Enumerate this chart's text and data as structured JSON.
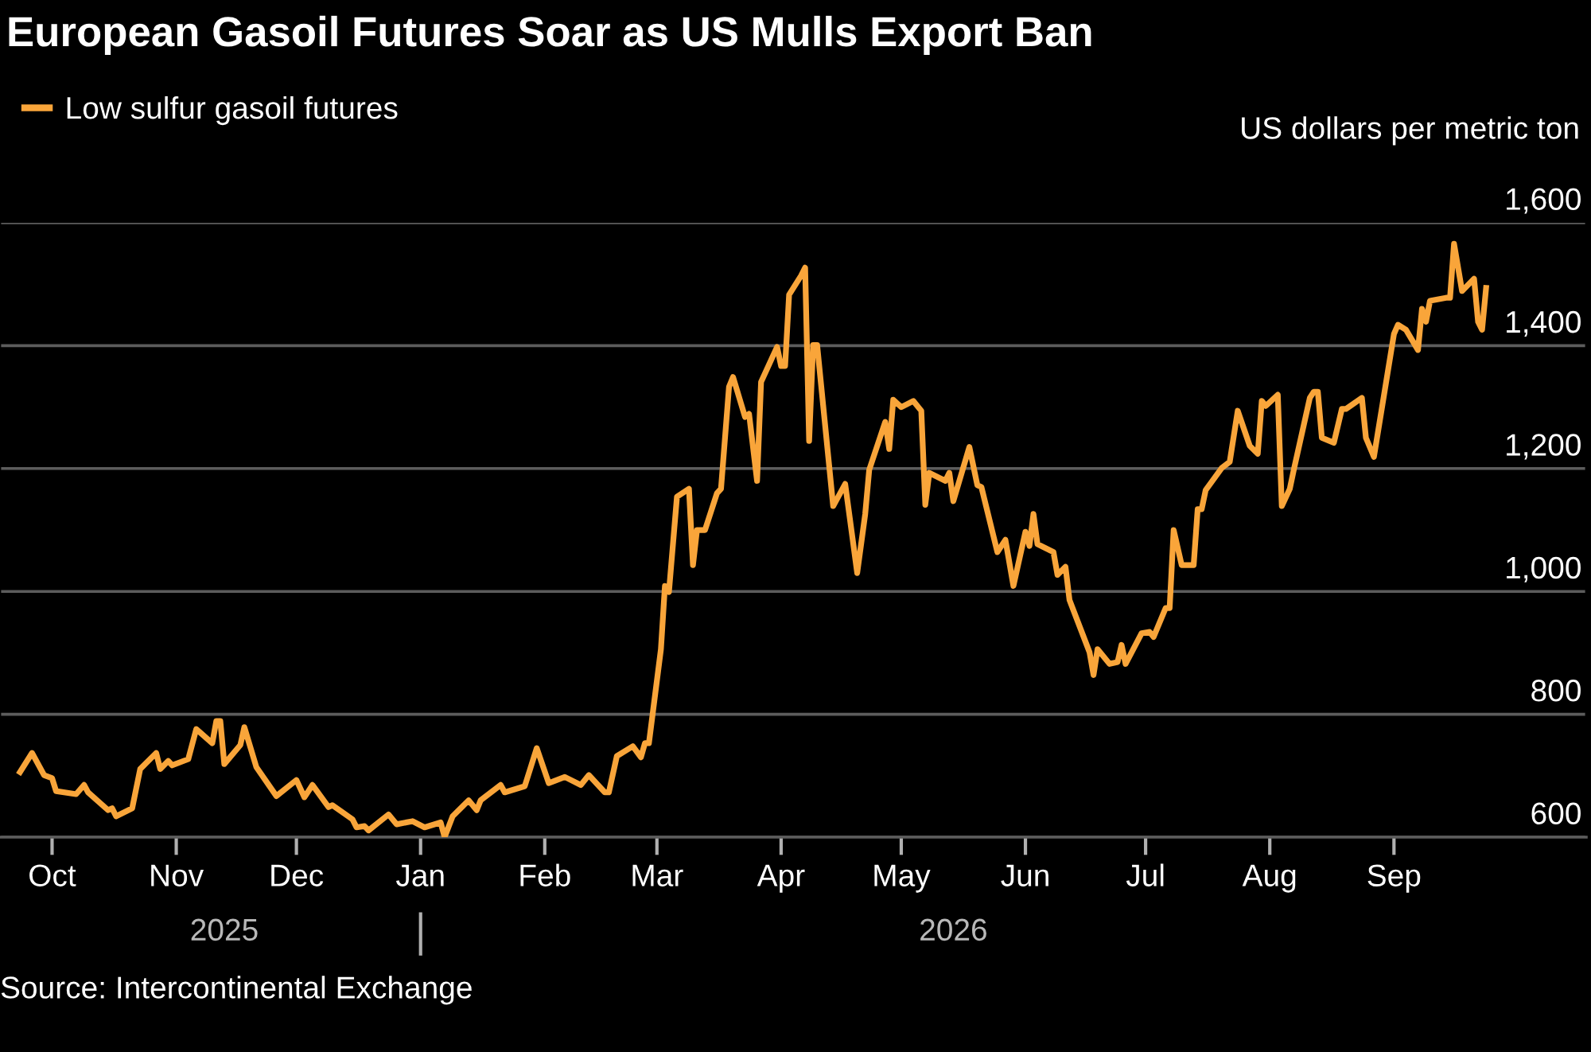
{
  "chart_data": {
    "type": "line",
    "title": "European Gasoil Futures Soar as US Mulls Export Ban",
    "ylabel": "US dollars per metric ton",
    "annotations": [
      "Source: Intercontinental Exchange"
    ],
    "series": [
      {
        "name": "Low sulfur gasoil futures",
        "color": "#f9a53a",
        "x": [
          "2025-09-23",
          "2025-09-26",
          "2025-09-29",
          "2025-10-01",
          "2025-10-02",
          "2025-10-07",
          "2025-10-09",
          "2025-10-10",
          "2025-10-15",
          "2025-10-16",
          "2025-10-17",
          "2025-10-21",
          "2025-10-23",
          "2025-10-27",
          "2025-10-28",
          "2025-10-30",
          "2025-10-31",
          "2025-11-04",
          "2025-11-06",
          "2025-11-10",
          "2025-11-11",
          "2025-11-12",
          "2025-11-13",
          "2025-11-17",
          "2025-11-18",
          "2025-11-21",
          "2025-11-26",
          "2025-12-01",
          "2025-12-03",
          "2025-12-05",
          "2025-12-09",
          "2025-12-10",
          "2025-12-15",
          "2025-12-16",
          "2025-12-18",
          "2025-12-19",
          "2025-12-24",
          "2025-12-26",
          "2025-12-30",
          "2026-01-02",
          "2026-01-06",
          "2026-01-07",
          "2026-01-09",
          "2026-01-13",
          "2026-01-15",
          "2026-01-16",
          "2026-01-21",
          "2026-01-22",
          "2026-01-27",
          "2026-01-30",
          "2026-02-02",
          "2026-02-06",
          "2026-02-10",
          "2026-02-12",
          "2026-02-16",
          "2026-02-17",
          "2026-02-19",
          "2026-02-23",
          "2026-02-25",
          "2026-02-26",
          "2026-02-27",
          "2026-03-02",
          "2026-03-03",
          "2026-03-04",
          "2026-03-06",
          "2026-03-09",
          "2026-03-10",
          "2026-03-11",
          "2026-03-13",
          "2026-03-16",
          "2026-03-17",
          "2026-03-19",
          "2026-03-20",
          "2026-03-23",
          "2026-03-24",
          "2026-03-26",
          "2026-03-27",
          "2026-03-31",
          "2026-04-01",
          "2026-04-02",
          "2026-04-03",
          "2026-04-06",
          "2026-04-07",
          "2026-04-08",
          "2026-04-09",
          "2026-04-10",
          "2026-04-14",
          "2026-04-17",
          "2026-04-20",
          "2026-04-22",
          "2026-04-23",
          "2026-04-27",
          "2026-04-28",
          "2026-04-29",
          "2026-05-01",
          "2026-05-04",
          "2026-05-06",
          "2026-05-07",
          "2026-05-08",
          "2026-05-12",
          "2026-05-13",
          "2026-05-14",
          "2026-05-18",
          "2026-05-20",
          "2026-05-21",
          "2026-05-25",
          "2026-05-27",
          "2026-05-29",
          "2026-06-01",
          "2026-06-02",
          "2026-06-03",
          "2026-06-04",
          "2026-06-08",
          "2026-06-09",
          "2026-06-11",
          "2026-06-12",
          "2026-06-17",
          "2026-06-18",
          "2026-06-19",
          "2026-06-22",
          "2026-06-24",
          "2026-06-25",
          "2026-06-26",
          "2026-06-30",
          "2026-07-02",
          "2026-07-03",
          "2026-07-06",
          "2026-07-07",
          "2026-07-08",
          "2026-07-10",
          "2026-07-13",
          "2026-07-14",
          "2026-07-15",
          "2026-07-16",
          "2026-07-20",
          "2026-07-22",
          "2026-07-24",
          "2026-07-27",
          "2026-07-29",
          "2026-07-30",
          "2026-07-31",
          "2026-08-03",
          "2026-08-04",
          "2026-08-06",
          "2026-08-07",
          "2026-08-11",
          "2026-08-12",
          "2026-08-13",
          "2026-08-14",
          "2026-08-17",
          "2026-08-19",
          "2026-08-20",
          "2026-08-24",
          "2026-08-25",
          "2026-08-27",
          "2026-09-01",
          "2026-09-02",
          "2026-09-04",
          "2026-09-07",
          "2026-09-08",
          "2026-09-09",
          "2026-09-10",
          "2026-09-14",
          "2026-09-15",
          "2026-09-16",
          "2026-09-18",
          "2026-09-21",
          "2026-09-22",
          "2026-09-23",
          "2026-09-24"
        ],
        "values": [
          706,
          737,
          701,
          696,
          675,
          670,
          685,
          673,
          644,
          647,
          634,
          647,
          711,
          737,
          711,
          724,
          717,
          727,
          776,
          753,
          789,
          789,
          719,
          750,
          779,
          714,
          667,
          693,
          665,
          685,
          649,
          652,
          629,
          616,
          618,
          611,
          637,
          621,
          626,
          616,
          624,
          600,
          634,
          660,
          644,
          660,
          685,
          673,
          683,
          745,
          688,
          698,
          685,
          701,
          673,
          673,
          732,
          748,
          730,
          753,
          753,
          906,
          1009,
          999,
          1154,
          1167,
          1043,
          1100,
          1100,
          1160,
          1167,
          1333,
          1349,
          1284,
          1289,
          1180,
          1341,
          1398,
          1367,
          1367,
          1483,
          1514,
          1527,
          1245,
          1401,
          1401,
          1139,
          1175,
          1030,
          1126,
          1198,
          1276,
          1232,
          1312,
          1300,
          1310,
          1294,
          1141,
          1193,
          1180,
          1193,
          1147,
          1235,
          1173,
          1170,
          1064,
          1084,
          1009,
          1097,
          1074,
          1126,
          1077,
          1064,
          1027,
          1040,
          986,
          901,
          864,
          906,
          882,
          885,
          913,
          882,
          932,
          934,
          926,
          973,
          973,
          1100,
          1043,
          1043,
          1134,
          1134,
          1165,
          1201,
          1211,
          1294,
          1237,
          1224,
          1310,
          1302,
          1320,
          1139,
          1167,
          1198,
          1315,
          1325,
          1325,
          1250,
          1242,
          1297,
          1297,
          1315,
          1250,
          1219,
          1419,
          1434,
          1426,
          1393,
          1460,
          1439,
          1473,
          1478,
          1478,
          1566,
          1489,
          1509,
          1439,
          1426,
          1494
        ]
      }
    ],
    "xlim": [
      "2025-09-18",
      "2026-10-19"
    ],
    "xticks": [
      {
        "value": "2025-10-01",
        "label": "Oct"
      },
      {
        "value": "2025-11-01",
        "label": "Nov"
      },
      {
        "value": "2025-12-01",
        "label": "Dec"
      },
      {
        "value": "2026-01-01",
        "label": "Jan"
      },
      {
        "value": "2026-02-01",
        "label": "Feb"
      },
      {
        "value": "2026-03-01",
        "label": "Mar"
      },
      {
        "value": "2026-04-01",
        "label": "Apr"
      },
      {
        "value": "2026-05-01",
        "label": "May"
      },
      {
        "value": "2026-06-01",
        "label": "Jun"
      },
      {
        "value": "2026-07-01",
        "label": "Jul"
      },
      {
        "value": "2026-08-01",
        "label": "Aug"
      },
      {
        "value": "2026-09-01",
        "label": "Sep"
      }
    ],
    "x2lim": [
      "2025-09-18",
      "2026-10-19"
    ],
    "x2ticks": [
      {
        "value": "2025-11-13",
        "label": "2025"
      },
      {
        "value": "2026-01-01",
        "label": null
      },
      {
        "value": "2026-05-14",
        "label": "2026"
      }
    ],
    "ylim": [
      600,
      1600
    ],
    "yticks": [
      600,
      800,
      {
        "value": 1000,
        "label": "1,000"
      },
      {
        "value": 1200,
        "label": "1,200"
      },
      {
        "value": 1400,
        "label": "1,400"
      },
      {
        "value": 1600,
        "label": "1,600"
      }
    ],
    "grid": "y",
    "legend": "top left",
    "marker": "none",
    "line_style": "solid"
  }
}
